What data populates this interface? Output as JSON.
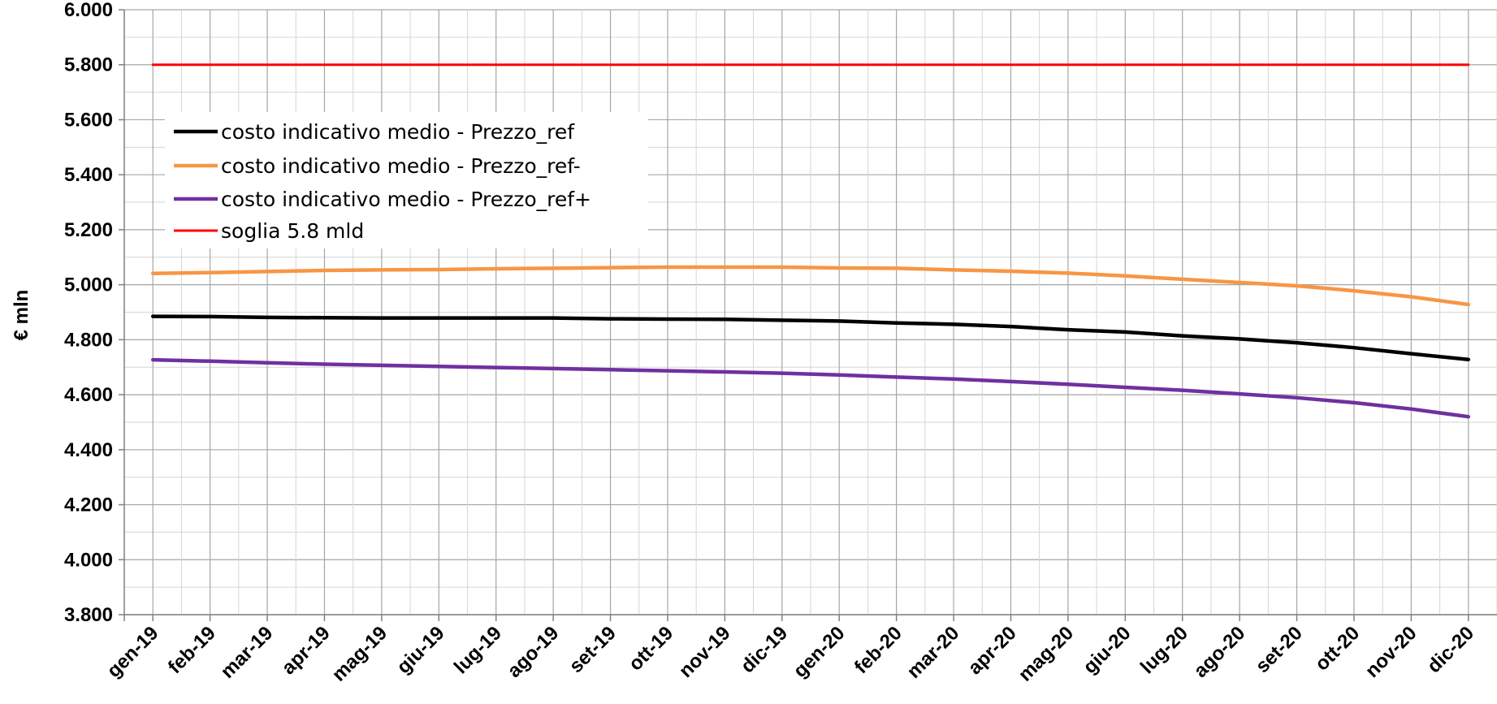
{
  "chart_data": {
    "type": "line",
    "title": "",
    "xlabel": "",
    "ylabel": "€ mln",
    "categories": [
      "gen-19",
      "feb-19",
      "mar-19",
      "apr-19",
      "mag-19",
      "giu-19",
      "lug-19",
      "ago-19",
      "set-19",
      "ott-19",
      "nov-19",
      "dic-19",
      "gen-20",
      "feb-20",
      "mar-20",
      "apr-20",
      "mag-20",
      "giu-20",
      "lug-20",
      "ago-20",
      "set-20",
      "ott-20",
      "nov-20",
      "dic-20"
    ],
    "ylim": [
      3800,
      6000
    ],
    "yticks": [
      3800,
      4000,
      4200,
      4400,
      4600,
      4800,
      5000,
      5200,
      5400,
      5600,
      5800,
      6000
    ],
    "ytick_labels": [
      "3.800",
      "4.000",
      "4.200",
      "4.400",
      "4.600",
      "4.800",
      "5.000",
      "5.200",
      "5.400",
      "5.600",
      "5.800",
      "6.000"
    ],
    "grid": true,
    "legend_position": "top-left",
    "series": [
      {
        "name": "costo indicativo medio - Prezzo_ref",
        "color": "#000000",
        "values": [
          4885,
          4884,
          4881,
          4880,
          4879,
          4879,
          4879,
          4879,
          4876,
          4875,
          4874,
          4871,
          4868,
          4861,
          4856,
          4848,
          4836,
          4828,
          4814,
          4803,
          4789,
          4771,
          4749,
          4728
        ]
      },
      {
        "name": "costo indicativo medio - Prezzo_ref-",
        "color": "#f79646",
        "values": [
          5041,
          5044,
          5048,
          5052,
          5054,
          5055,
          5058,
          5060,
          5062,
          5064,
          5064,
          5064,
          5061,
          5060,
          5054,
          5049,
          5042,
          5032,
          5020,
          5008,
          4996,
          4978,
          4956,
          4928
        ]
      },
      {
        "name": "costo indicativo medio - Prezzo_ref+",
        "color": "#7030a0",
        "values": [
          4727,
          4722,
          4716,
          4711,
          4707,
          4703,
          4699,
          4695,
          4691,
          4687,
          4683,
          4678,
          4672,
          4664,
          4657,
          4648,
          4638,
          4627,
          4616,
          4603,
          4589,
          4571,
          4548,
          4520
        ]
      },
      {
        "name": "soglia 5.8 mld",
        "color": "#ff0000",
        "values": [
          5800,
          5800,
          5800,
          5800,
          5800,
          5800,
          5800,
          5800,
          5800,
          5800,
          5800,
          5800,
          5800,
          5800,
          5800,
          5800,
          5800,
          5800,
          5800,
          5800,
          5800,
          5800,
          5800,
          5800
        ]
      }
    ]
  }
}
